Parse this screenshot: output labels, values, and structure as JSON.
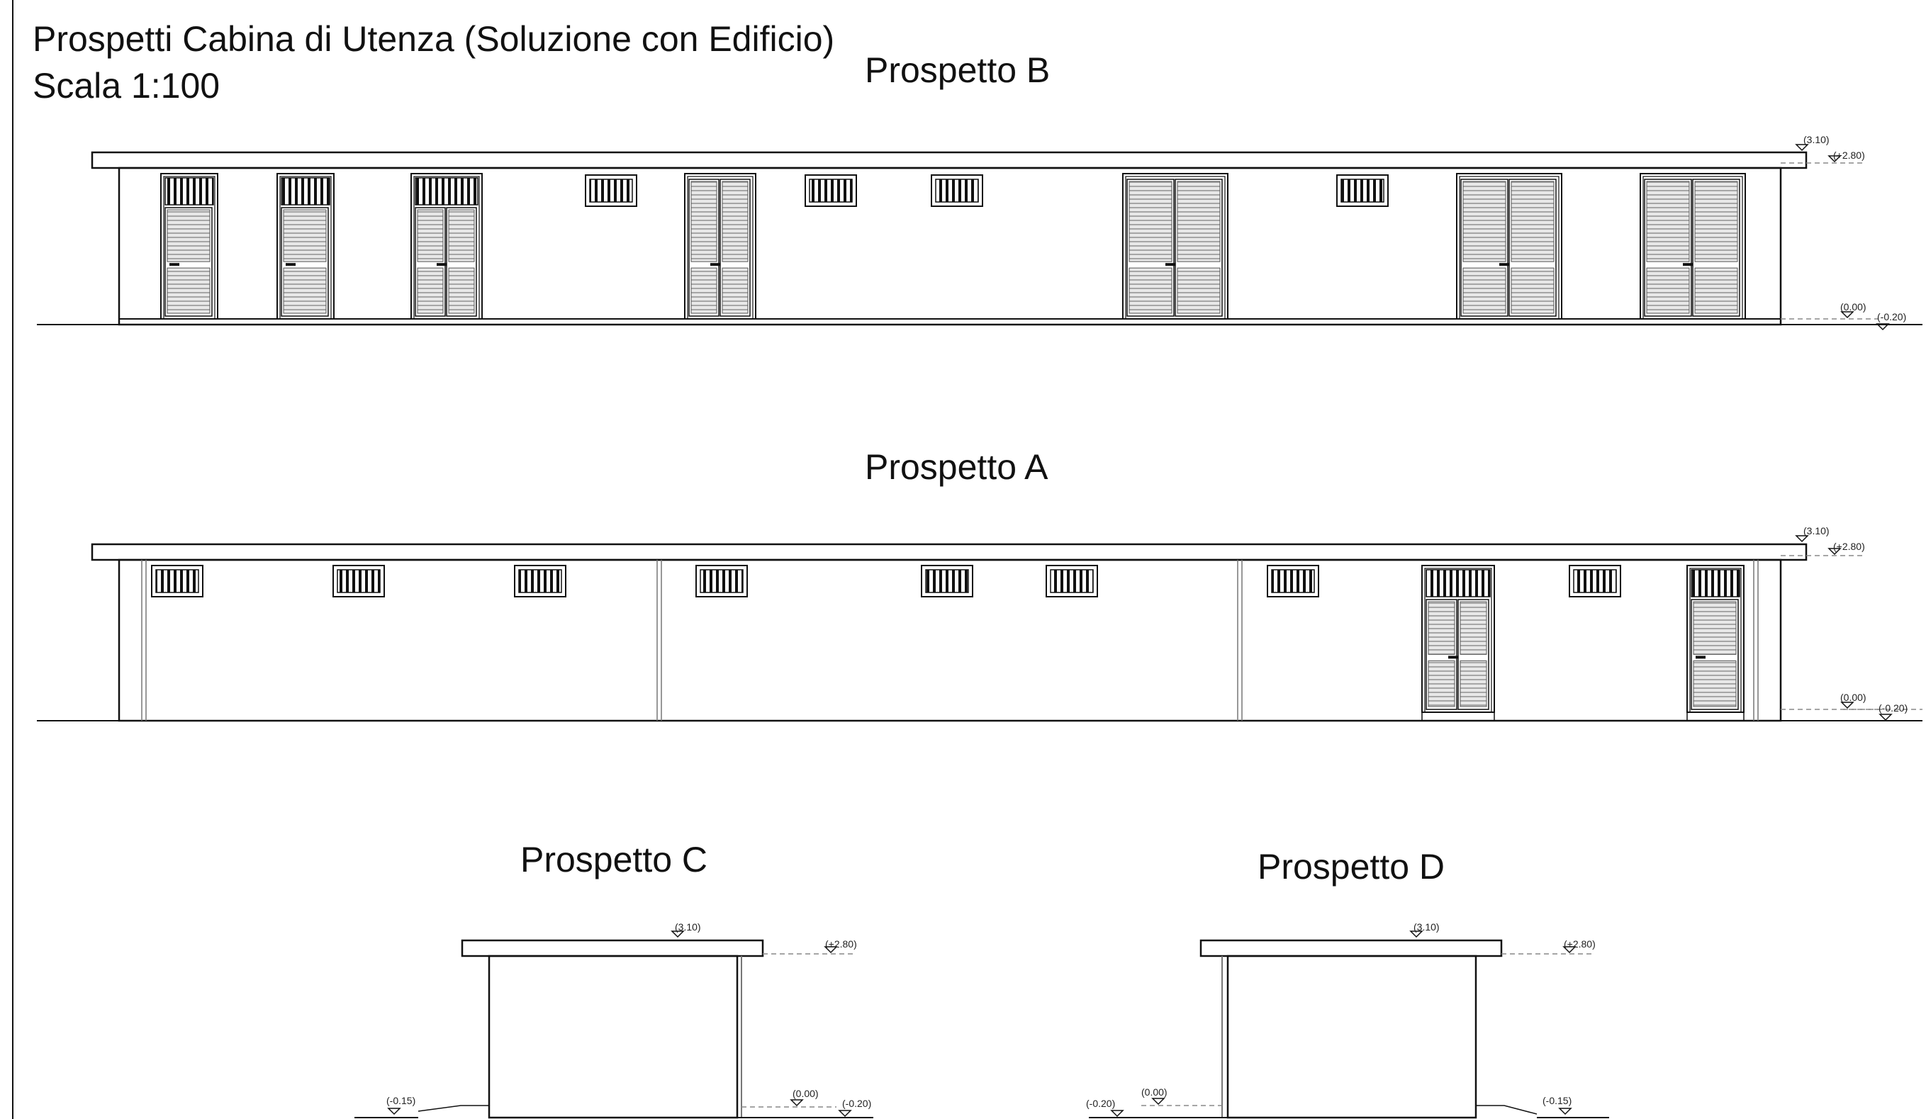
{
  "sheet": {
    "title_line1": "Prospetti Cabina di Utenza (Soluzione con Edificio)",
    "title_line2": "Scala 1:100"
  },
  "views": {
    "b": {
      "label": "Prospetto B"
    },
    "a": {
      "label": "Prospetto A"
    },
    "c": {
      "label": "Prospetto C"
    },
    "d": {
      "label": "Prospetto D"
    }
  },
  "levels": {
    "roof": "(3.10)",
    "parapet": "(+2.80)",
    "ground": "(0.00)",
    "outside": "(-0.20)",
    "side_low": "(-0.15)"
  },
  "colors": {
    "line": "#111111",
    "shutter": "#9a9a9a",
    "dash": "#888888"
  }
}
